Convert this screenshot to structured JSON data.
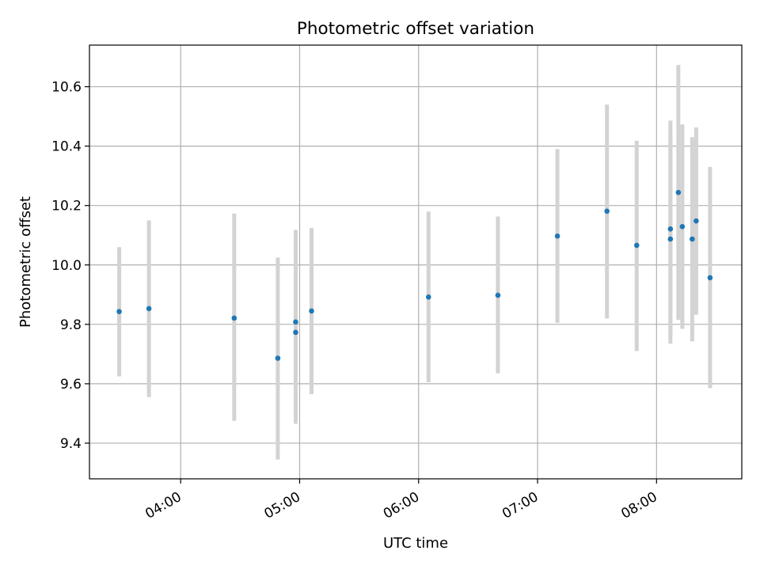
{
  "chart_data": {
    "type": "scatter",
    "title": "Photometric offset variation",
    "xlabel": "UTC time",
    "ylabel": "Photometric offset",
    "xlim": [
      "03:14",
      "08:43"
    ],
    "ylim": [
      9.28,
      10.74
    ],
    "x_ticks": [
      "04:00",
      "05:00",
      "06:00",
      "07:00",
      "08:00"
    ],
    "y_ticks": [
      9.4,
      9.6,
      9.8,
      10.0,
      10.2,
      10.4,
      10.6
    ],
    "y_tick_labels": [
      "9.4",
      "9.6",
      "9.8",
      "10.0",
      "10.2",
      "10.4",
      "10.6"
    ],
    "grid": true,
    "legend": false,
    "colors": {
      "points": "#1f77b4",
      "error_bars": "#d3d3d3",
      "grid": "#b0b0b0"
    },
    "series": [
      {
        "points": [
          {
            "x": "03:29",
            "y": 9.843,
            "ylo": 9.625,
            "yhi": 10.06
          },
          {
            "x": "03:44",
            "y": 9.853,
            "ylo": 9.555,
            "yhi": 10.15
          },
          {
            "x": "04:27",
            "y": 9.821,
            "ylo": 9.475,
            "yhi": 10.173
          },
          {
            "x": "04:49",
            "y": 9.686,
            "ylo": 9.345,
            "yhi": 10.025
          },
          {
            "x": "04:58",
            "y": 9.773,
            "ylo": 9.465,
            "yhi": 10.082
          },
          {
            "x": "04:58",
            "y": 9.808,
            "ylo": 9.495,
            "yhi": 10.118
          },
          {
            "x": "05:06",
            "y": 9.845,
            "ylo": 9.565,
            "yhi": 10.125
          },
          {
            "x": "06:05",
            "y": 9.892,
            "ylo": 9.605,
            "yhi": 10.18
          },
          {
            "x": "06:40",
            "y": 9.898,
            "ylo": 9.635,
            "yhi": 10.163
          },
          {
            "x": "07:10",
            "y": 10.097,
            "ylo": 9.805,
            "yhi": 10.39
          },
          {
            "x": "07:35",
            "y": 10.181,
            "ylo": 9.82,
            "yhi": 10.54
          },
          {
            "x": "07:50",
            "y": 10.066,
            "ylo": 9.71,
            "yhi": 10.418
          },
          {
            "x": "08:07",
            "y": 10.087,
            "ylo": 9.735,
            "yhi": 10.44
          },
          {
            "x": "08:07",
            "y": 10.121,
            "ylo": 9.758,
            "yhi": 10.486
          },
          {
            "x": "08:11",
            "y": 10.244,
            "ylo": 9.815,
            "yhi": 10.673
          },
          {
            "x": "08:13",
            "y": 10.129,
            "ylo": 9.785,
            "yhi": 10.473
          },
          {
            "x": "08:18",
            "y": 10.087,
            "ylo": 9.743,
            "yhi": 10.43
          },
          {
            "x": "08:20",
            "y": 10.148,
            "ylo": 9.832,
            "yhi": 10.463
          },
          {
            "x": "08:27",
            "y": 9.957,
            "ylo": 9.585,
            "yhi": 10.33
          }
        ]
      }
    ]
  }
}
